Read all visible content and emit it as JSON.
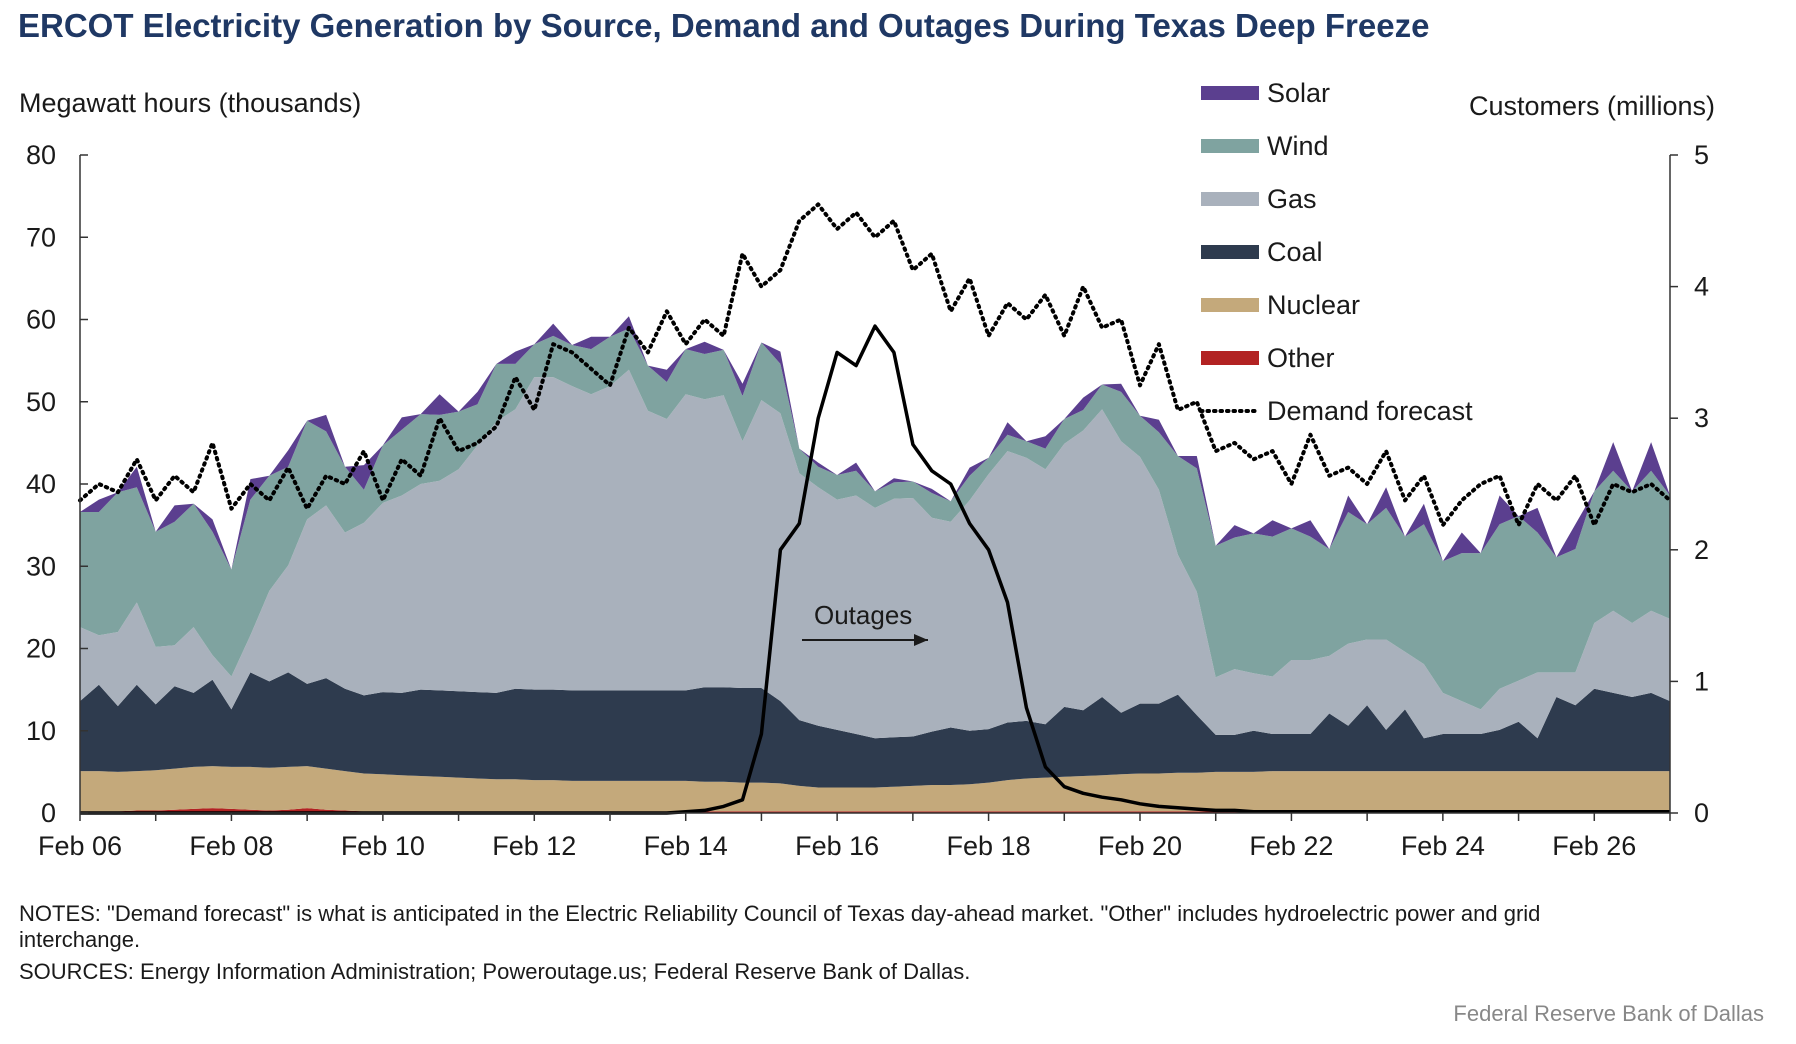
{
  "chart_data": {
    "type": "area",
    "title": "ERCOT Electricity Generation by Source, Demand and Outages During Texas Deep Freeze",
    "ylabel": "Megawatt hours (thousands)",
    "y2label": "Customers (millions)",
    "ylim": [
      0,
      80
    ],
    "y2lim": [
      0,
      5
    ],
    "yticks": [
      "0",
      "10",
      "20",
      "30",
      "40",
      "50",
      "60",
      "70",
      "80"
    ],
    "y2ticks": [
      "0",
      "1",
      "2",
      "3",
      "4",
      "5"
    ],
    "x_ticks": [
      "Feb 06",
      "Feb 08",
      "Feb 10",
      "Feb 12",
      "Feb 14",
      "Feb 16",
      "Feb 18",
      "Feb 20",
      "Feb 22",
      "Feb 24",
      "Feb 26"
    ],
    "x_range_days": [
      6,
      27
    ],
    "legend_position": "top-right",
    "colors": {
      "Solar": "#5b3f8f",
      "Wind": "#7fa3a0",
      "Gas": "#a9b1bc",
      "Coal": "#2e3b4e",
      "Nuclear": "#c4a97b",
      "Other": "#b22222",
      "Demand forecast": "#000000",
      "Outages": "#000000"
    },
    "x": [
      6,
      6.25,
      6.5,
      6.75,
      7,
      7.25,
      7.5,
      7.75,
      8,
      8.25,
      8.5,
      8.75,
      9,
      9.25,
      9.5,
      9.75,
      10,
      10.25,
      10.5,
      10.75,
      11,
      11.25,
      11.5,
      11.75,
      12,
      12.25,
      12.5,
      12.75,
      13,
      13.25,
      13.5,
      13.75,
      14,
      14.25,
      14.5,
      14.75,
      15,
      15.25,
      15.5,
      15.75,
      16,
      16.25,
      16.5,
      16.75,
      17,
      17.25,
      17.5,
      17.75,
      18,
      18.25,
      18.5,
      18.75,
      19,
      19.25,
      19.5,
      19.75,
      20,
      20.25,
      20.5,
      20.75,
      21,
      21.25,
      21.5,
      21.75,
      22,
      22.25,
      22.5,
      22.75,
      23,
      23.25,
      23.5,
      23.75,
      24,
      24.25,
      24.5,
      24.75,
      25,
      25.25,
      25.5,
      25.75,
      26,
      26.25,
      26.5,
      26.75,
      27
    ],
    "series": [
      {
        "name": "Other",
        "role": "stack",
        "values": [
          0.2,
          0.2,
          0.2,
          0.3,
          0.3,
          0.4,
          0.5,
          0.6,
          0.5,
          0.4,
          0.3,
          0.4,
          0.6,
          0.4,
          0.3,
          0.2,
          0.2,
          0.2,
          0.2,
          0.2,
          0.2,
          0.2,
          0.2,
          0.2,
          0.2,
          0.2,
          0.2,
          0.2,
          0.2,
          0.2,
          0.2,
          0.2,
          0.2,
          0.2,
          0.2,
          0.2,
          0.2,
          0.2,
          0.2,
          0.2,
          0.2,
          0.2,
          0.2,
          0.2,
          0.2,
          0.2,
          0.2,
          0.2,
          0.2,
          0.2,
          0.2,
          0.2,
          0.2,
          0.2,
          0.2,
          0.2,
          0.2,
          0.2,
          0.2,
          0.2,
          0.2,
          0.2,
          0.2,
          0.2,
          0.2,
          0.2,
          0.2,
          0.2,
          0.2,
          0.2,
          0.2,
          0.2,
          0.2,
          0.2,
          0.2,
          0.2,
          0.2,
          0.2,
          0.2,
          0.2,
          0.2,
          0.2,
          0.2,
          0.2,
          0.2
        ]
      },
      {
        "name": "Nuclear",
        "role": "stack",
        "values": [
          4.9,
          4.9,
          4.8,
          4.8,
          4.9,
          5.0,
          5.1,
          5.1,
          5.1,
          5.2,
          5.2,
          5.2,
          5.1,
          5.0,
          4.8,
          4.6,
          4.5,
          4.4,
          4.3,
          4.2,
          4.1,
          4.0,
          3.9,
          3.9,
          3.8,
          3.8,
          3.7,
          3.7,
          3.7,
          3.7,
          3.7,
          3.7,
          3.7,
          3.6,
          3.6,
          3.5,
          3.5,
          3.4,
          3.1,
          2.9,
          2.9,
          2.9,
          2.9,
          3.0,
          3.1,
          3.2,
          3.2,
          3.3,
          3.5,
          3.8,
          4.0,
          4.1,
          4.2,
          4.3,
          4.4,
          4.5,
          4.6,
          4.6,
          4.7,
          4.7,
          4.8,
          4.8,
          4.8,
          4.9,
          4.9,
          4.9,
          4.9,
          4.9,
          4.9,
          4.9,
          4.9,
          4.9,
          4.9,
          4.9,
          4.9,
          4.9,
          4.9,
          4.9,
          4.9,
          4.9,
          4.9,
          4.9,
          4.9,
          4.9,
          4.9
        ]
      },
      {
        "name": "Coal",
        "role": "stack",
        "values": [
          8.5,
          10.5,
          8,
          10.5,
          8,
          10,
          9,
          10.5,
          7,
          11.5,
          10.5,
          11.5,
          10,
          11,
          10,
          9.5,
          10,
          10,
          10.5,
          10.5,
          10.5,
          10.5,
          10.5,
          11,
          11,
          11,
          11,
          11,
          11,
          11,
          11,
          11,
          11,
          11.5,
          11.5,
          11.5,
          11.5,
          10,
          8,
          7.5,
          7,
          6.5,
          6,
          6,
          6,
          6.5,
          7,
          6.5,
          6.5,
          7,
          7,
          6.5,
          8.5,
          8,
          9.5,
          7.5,
          8.5,
          8.5,
          9.5,
          7,
          4.5,
          4.5,
          5,
          4.5,
          4.5,
          4.5,
          7,
          5.5,
          8,
          5,
          7.5,
          4,
          4.5,
          4.5,
          4.5,
          5,
          6,
          4,
          9,
          8,
          10,
          9.5,
          9,
          9.5,
          8.5
        ]
      },
      {
        "name": "Gas",
        "role": "stack",
        "values": [
          9,
          6,
          9,
          10,
          7,
          5,
          8,
          3,
          4,
          4.5,
          11,
          13,
          20,
          21,
          19,
          21,
          23,
          24,
          25,
          25.5,
          27,
          30,
          33,
          34,
          38,
          38,
          37,
          36,
          37,
          39,
          34,
          33,
          36,
          35,
          35.5,
          30,
          35,
          35,
          30,
          29,
          28,
          29,
          28,
          29,
          29,
          26,
          25,
          28,
          31,
          33,
          32,
          31,
          32,
          34,
          35,
          33,
          30,
          26,
          17,
          15,
          7,
          8,
          7,
          7,
          9,
          9,
          7,
          10,
          8,
          11,
          7,
          9,
          5,
          4,
          3,
          5,
          5,
          8,
          3,
          4,
          8,
          10,
          9,
          10,
          10
        ]
      },
      {
        "name": "Wind",
        "role": "stack",
        "values": [
          14,
          15,
          17,
          14,
          14,
          15,
          15,
          15,
          13,
          16.5,
          14,
          12,
          12,
          9,
          8,
          4,
          7,
          8,
          8.5,
          8,
          7,
          5,
          7,
          5.5,
          4,
          5,
          5,
          5.5,
          6,
          5,
          5.5,
          4.5,
          5.5,
          5.5,
          5.5,
          5.5,
          7,
          6,
          3,
          2.5,
          3,
          3,
          2,
          2,
          2,
          3,
          2.5,
          3,
          2,
          2,
          2,
          2.5,
          3,
          2.5,
          3,
          6,
          5,
          7,
          12,
          15,
          16,
          16,
          17,
          17,
          16,
          15,
          13,
          16,
          14,
          16,
          14,
          17,
          16,
          18,
          19,
          20,
          20,
          17,
          14,
          15,
          16,
          17,
          16,
          17,
          15
        ]
      },
      {
        "name": "Solar",
        "role": "stack",
        "values": [
          0,
          1.5,
          0,
          2.5,
          0,
          2,
          0,
          1.5,
          0,
          2.5,
          0,
          2,
          0,
          2,
          0,
          3,
          0,
          1.5,
          0,
          2.5,
          0,
          1.5,
          0,
          1.5,
          0,
          1.5,
          0,
          1.5,
          0,
          1.5,
          0,
          1.5,
          0,
          1.5,
          0,
          1.5,
          0,
          1.5,
          0,
          0.5,
          0,
          1,
          0,
          0.5,
          0,
          0.5,
          0,
          1,
          0,
          1.5,
          0,
          1.5,
          0,
          1.5,
          0,
          1,
          0,
          1.5,
          0,
          1.5,
          0,
          1.5,
          0,
          2,
          0,
          2,
          0,
          2,
          0,
          2.5,
          0,
          2.5,
          0,
          2.5,
          0,
          3.5,
          0,
          3,
          0,
          3,
          0,
          3.5,
          0,
          3.5,
          0
        ]
      },
      {
        "name": "Demand forecast",
        "role": "line",
        "axis": "left",
        "style": "dotted",
        "values": [
          38,
          40,
          39,
          43,
          38,
          41,
          39,
          45,
          37,
          40,
          38,
          42,
          37,
          41,
          40,
          44,
          38,
          43,
          41,
          48,
          44,
          45,
          47,
          53,
          49,
          57,
          56,
          54,
          52,
          59,
          56,
          61,
          57,
          60,
          58,
          68,
          64,
          66,
          72,
          74,
          71,
          73,
          70,
          72,
          66,
          68,
          61,
          65,
          58,
          62,
          60,
          63,
          58,
          64,
          59,
          60,
          52,
          57,
          49,
          50,
          44,
          45,
          43,
          44,
          40,
          46,
          41,
          42,
          40,
          44,
          38,
          41,
          35,
          38,
          40,
          41,
          35,
          40,
          38,
          41,
          35,
          40,
          39,
          40,
          38
        ]
      },
      {
        "name": "Outages",
        "role": "line",
        "axis": "right",
        "style": "solid",
        "values": [
          0,
          0,
          0,
          0,
          0,
          0,
          0,
          0,
          0,
          0,
          0,
          0,
          0,
          0,
          0,
          0,
          0,
          0,
          0,
          0,
          0,
          0,
          0,
          0,
          0,
          0,
          0,
          0,
          0,
          0,
          0,
          0,
          0.01,
          0.02,
          0.05,
          0.1,
          0.6,
          2.0,
          2.2,
          3.0,
          3.5,
          3.4,
          3.7,
          3.5,
          2.8,
          2.6,
          2.5,
          2.2,
          2.0,
          1.6,
          0.8,
          0.35,
          0.2,
          0.15,
          0.12,
          0.1,
          0.07,
          0.05,
          0.04,
          0.03,
          0.02,
          0.02,
          0.01,
          0.01,
          0.01,
          0.01,
          0.01,
          0.01,
          0.01,
          0.01,
          0.01,
          0.01,
          0.01,
          0.01,
          0.01,
          0.01,
          0.01,
          0.01,
          0.01,
          0.01,
          0.01,
          0.01,
          0.01,
          0.01,
          0.01
        ]
      }
    ],
    "annotation": {
      "text": "Outages"
    }
  },
  "footer": {
    "notes": "NOTES: \"Demand forecast\" is what is anticipated in the Electric Reliability Council of Texas day-ahead market. \"Other\" includes hydroelectric power and grid interchange.",
    "notes_line1": "NOTES: \"Demand forecast\" is what is anticipated in the Electric Reliability Council of Texas day-ahead market. \"Other\" includes hydroelectric power and grid",
    "notes_line2": "interchange.",
    "sources": "SOURCES: Energy Information Administration; Poweroutage.us; Federal Reserve Bank of Dallas.",
    "credit": "Federal Reserve Bank of Dallas"
  }
}
